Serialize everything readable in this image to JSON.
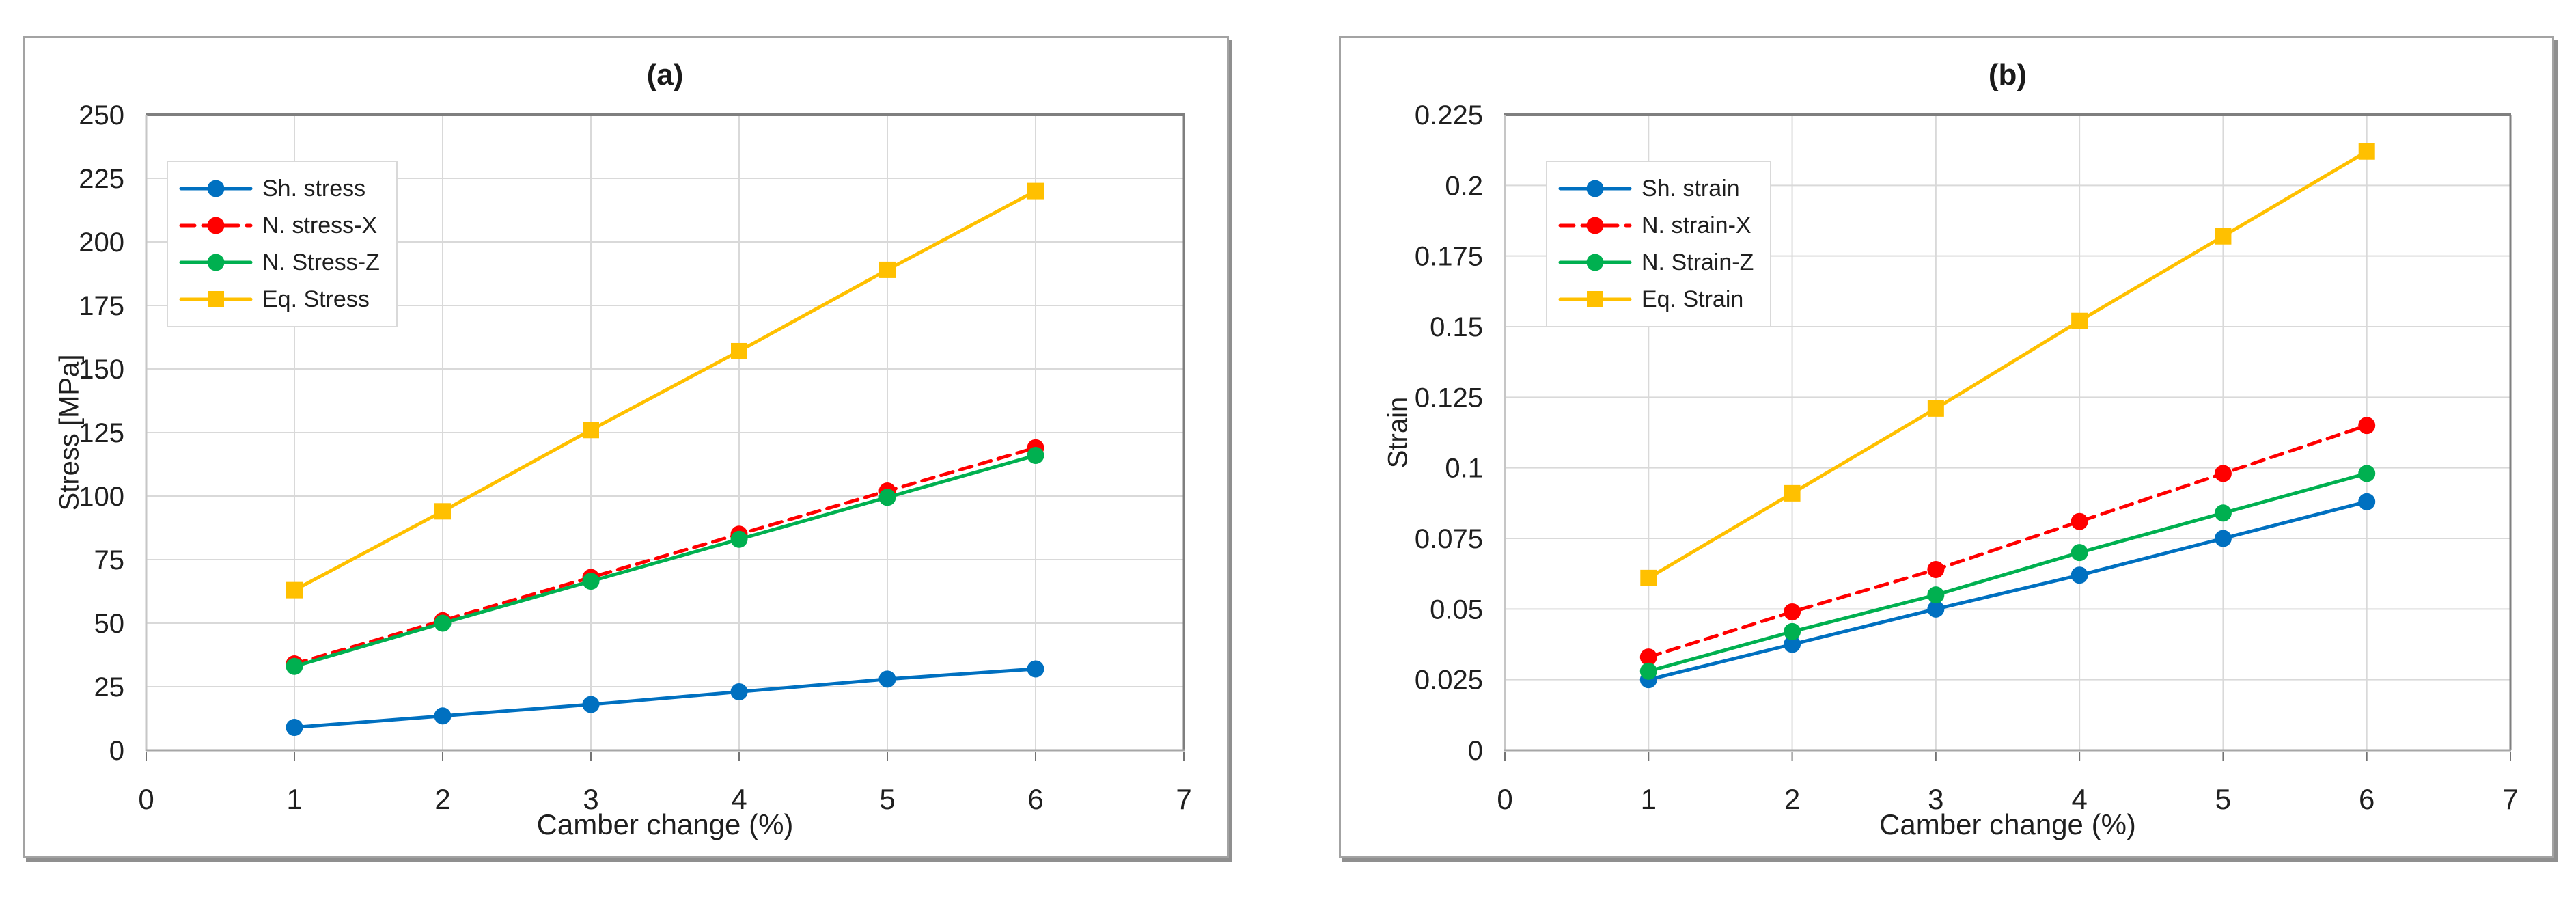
{
  "chart_data": [
    {
      "type": "line",
      "title": "(a)",
      "xlabel": "Camber change (%)",
      "ylabel": "Stress [MPa]",
      "x": [
        1,
        2,
        3,
        4,
        5,
        6
      ],
      "xlim": [
        0,
        7
      ],
      "ylim": [
        0,
        250
      ],
      "xtick_labels": [
        "0",
        "1",
        "2",
        "3",
        "4",
        "5",
        "6",
        "7"
      ],
      "ytick_labels": [
        "0",
        "25",
        "50",
        "75",
        "100",
        "125",
        "150",
        "175",
        "200",
        "225",
        "250"
      ],
      "grid": true,
      "legend_position": "top-left",
      "series": [
        {
          "name": "Sh. stress",
          "color": "#0070C0",
          "line": "solid",
          "marker": "circle",
          "values": [
            9,
            13.5,
            18,
            23,
            28,
            32
          ]
        },
        {
          "name": "N. stress-X",
          "color": "#FF0000",
          "line": "dashed",
          "marker": "circle",
          "values": [
            34,
            51,
            68,
            85,
            102,
            119
          ]
        },
        {
          "name": "N. Stress-Z",
          "color": "#00B050",
          "line": "solid",
          "marker": "circle",
          "values": [
            33,
            50,
            66.5,
            83,
            99.5,
            116
          ]
        },
        {
          "name": "Eq. Stress",
          "color": "#FFC000",
          "line": "solid",
          "marker": "square",
          "values": [
            63,
            94,
            126,
            157,
            189,
            220
          ]
        }
      ]
    },
    {
      "type": "line",
      "title": "(b)",
      "xlabel": "Camber change (%)",
      "ylabel": "Strain",
      "x": [
        1,
        2,
        3,
        4,
        5,
        6
      ],
      "xlim": [
        0,
        7
      ],
      "ylim": [
        0,
        0.225
      ],
      "xtick_labels": [
        "0",
        "1",
        "2",
        "3",
        "4",
        "5",
        "6",
        "7"
      ],
      "ytick_labels": [
        "0",
        "0.025",
        "0.05",
        "0.075",
        "0.1",
        "0.125",
        "0.15",
        "0.175",
        "0.2",
        "0.225"
      ],
      "grid": true,
      "legend_position": "top-left",
      "series": [
        {
          "name": "Sh. strain",
          "color": "#0070C0",
          "line": "solid",
          "marker": "circle",
          "values": [
            0.025,
            0.0375,
            0.05,
            0.062,
            0.075,
            0.088
          ]
        },
        {
          "name": "N. strain-X",
          "color": "#FF0000",
          "line": "dashed",
          "marker": "circle",
          "values": [
            0.033,
            0.049,
            0.064,
            0.081,
            0.098,
            0.115
          ]
        },
        {
          "name": "N. Strain-Z",
          "color": "#00B050",
          "line": "solid",
          "marker": "circle",
          "values": [
            0.028,
            0.042,
            0.055,
            0.07,
            0.084,
            0.098
          ]
        },
        {
          "name": "Eq. Strain",
          "color": "#FFC000",
          "line": "solid",
          "marker": "square",
          "values": [
            0.061,
            0.091,
            0.121,
            0.152,
            0.182,
            0.212
          ]
        }
      ]
    }
  ],
  "style_colors": {
    "gridline": "#d9d9d9",
    "plot_border_dark": "#7f7f7f",
    "x_axis_line": "#a6a6a6",
    "y_axis_line": "#c6c6c6",
    "tick_mark": "#737373",
    "text": "#1f1f1f"
  }
}
